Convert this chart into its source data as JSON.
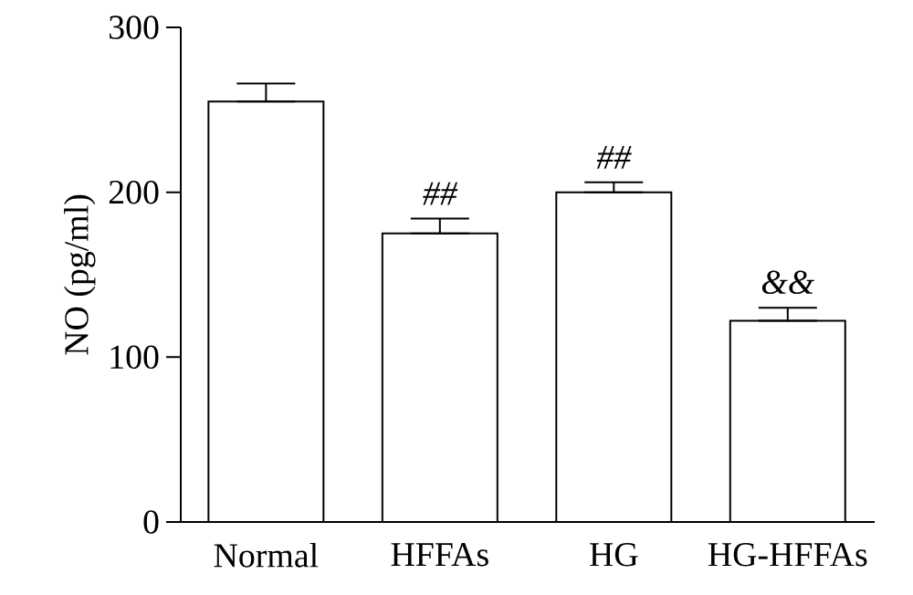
{
  "chart_data": {
    "type": "bar",
    "ylabel": "NO (pg/ml)",
    "categories": [
      "Normal",
      "HFFAs",
      "HG",
      "HG-HFFAs"
    ],
    "values": [
      255,
      175,
      200,
      122
    ],
    "errors": [
      [
        255,
        266
      ],
      [
        175,
        184
      ],
      [
        200,
        206
      ],
      [
        122,
        130
      ]
    ],
    "color": "#ffffff",
    "ylim": [
      0,
      300
    ],
    "yticks": [
      0,
      100,
      200,
      300
    ],
    "grid": false,
    "annotations": [
      {
        "text": "##",
        "x": "HFFAs",
        "y": 184
      },
      {
        "text": "##",
        "x": "HG",
        "y": 206
      },
      {
        "text": "&&",
        "x": "HG-HFFAs",
        "y": 130
      }
    ]
  }
}
